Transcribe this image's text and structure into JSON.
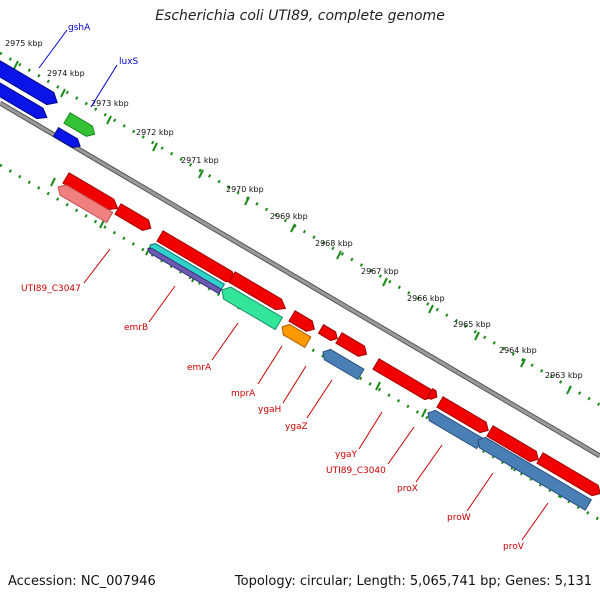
{
  "title": "Escherichia coli UTI89, complete genome",
  "footer": {
    "accession": "Accession: NC_007946",
    "topology": "Topology: circular; Length: 5,065,741 bp; Genes: 5,131"
  },
  "colors": {
    "backbone": "#7f7f7f",
    "tick": "#1a8a1a",
    "label_red": "#cc0000",
    "label_blue": "#0000cc"
  },
  "ruler_labels": [
    "2975 kbp",
    "2974 kbp",
    "2973 kbp",
    "2972 kbp",
    "2971 kbp",
    "2970 kbp",
    "2969 kbp",
    "2968 kbp",
    "2967 kbp",
    "2966 kbp",
    "2965 kbp",
    "2964 kbp",
    "2963 kbp"
  ],
  "gene_labels": [
    "gshA",
    "luxS",
    "UTI89_C3047",
    "emrB",
    "emrA",
    "mprA",
    "ygaH",
    "ygaZ",
    "ygaY",
    "UTI89_C3040",
    "proX",
    "proW",
    "proV"
  ]
}
